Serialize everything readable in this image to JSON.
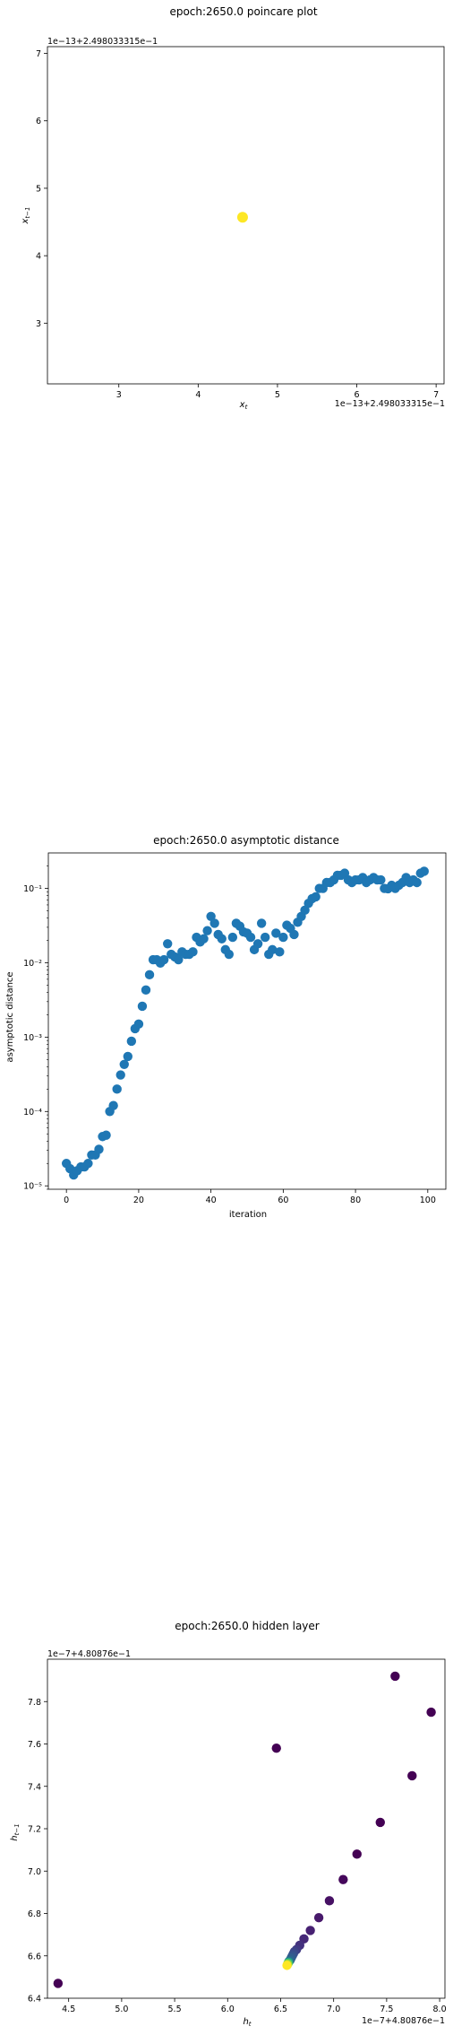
{
  "chart_data": [
    {
      "type": "scatter",
      "title": "epoch:2650.0 poincare plot",
      "xlabel": "x_t",
      "ylabel": "x_{t-1}",
      "x_offset_label": "1e−13+2.498033315e−1",
      "y_offset_label": "1e−13+2.498033315e−1",
      "xlim": [
        2.1,
        7.1
      ],
      "ylim": [
        2.1,
        7.1
      ],
      "xticks": [
        3,
        4,
        5,
        6,
        7
      ],
      "yticks": [
        3,
        4,
        5,
        6,
        7
      ],
      "x": [
        4.56
      ],
      "y": [
        4.57
      ],
      "colors": [
        "#fde725"
      ]
    },
    {
      "type": "scatter",
      "title": "epoch:2650.0 asymptotic distance",
      "xlabel": "iteration",
      "ylabel": "asymptotic distance",
      "yscale": "log",
      "xlim": [
        -5,
        105
      ],
      "ylim": [
        9e-06,
        0.3
      ],
      "xticks": [
        0,
        20,
        40,
        60,
        80,
        100
      ],
      "yticks": [
        {
          "value": 1e-05,
          "label": "10⁻⁵"
        },
        {
          "value": 0.0001,
          "label": "10⁻⁴"
        },
        {
          "value": 0.001,
          "label": "10⁻³"
        },
        {
          "value": 0.01,
          "label": "10⁻²"
        },
        {
          "value": 0.1,
          "label": "10⁻¹"
        }
      ],
      "color": "#1f77b4",
      "x": [
        0,
        1,
        2,
        3,
        4,
        5,
        6,
        7,
        8,
        9,
        10,
        11,
        12,
        13,
        14,
        15,
        16,
        17,
        18,
        19,
        20,
        21,
        22,
        23,
        24,
        25,
        26,
        27,
        28,
        29,
        30,
        31,
        32,
        33,
        34,
        35,
        36,
        37,
        38,
        39,
        40,
        41,
        42,
        43,
        44,
        45,
        46,
        47,
        48,
        49,
        50,
        51,
        52,
        53,
        54,
        55,
        56,
        57,
        58,
        59,
        60,
        61,
        62,
        63,
        64,
        65,
        66,
        67,
        68,
        69,
        70,
        71,
        72,
        73,
        74,
        75,
        76,
        77,
        78,
        79,
        80,
        81,
        82,
        83,
        84,
        85,
        86,
        87,
        88,
        89,
        90,
        91,
        92,
        93,
        94,
        95,
        96,
        97,
        98,
        99
      ],
      "y": [
        2e-05,
        1.7e-05,
        1.4e-05,
        1.6e-05,
        1.8e-05,
        1.8e-05,
        2e-05,
        2.6e-05,
        2.6e-05,
        3.1e-05,
        4.6e-05,
        4.8e-05,
        0.0001,
        0.00012,
        0.0002,
        0.00031,
        0.00043,
        0.00055,
        0.00088,
        0.0013,
        0.0015,
        0.0026,
        0.0043,
        0.0069,
        0.011,
        0.011,
        0.0099,
        0.011,
        0.018,
        0.013,
        0.012,
        0.011,
        0.014,
        0.013,
        0.013,
        0.014,
        0.022,
        0.019,
        0.021,
        0.027,
        0.042,
        0.034,
        0.024,
        0.021,
        0.015,
        0.013,
        0.022,
        0.034,
        0.031,
        0.026,
        0.025,
        0.022,
        0.015,
        0.018,
        0.034,
        0.022,
        0.013,
        0.015,
        0.025,
        0.014,
        0.022,
        0.032,
        0.029,
        0.024,
        0.035,
        0.042,
        0.051,
        0.063,
        0.073,
        0.077,
        0.1,
        0.1,
        0.12,
        0.12,
        0.13,
        0.15,
        0.15,
        0.16,
        0.13,
        0.12,
        0.13,
        0.13,
        0.14,
        0.12,
        0.13,
        0.14,
        0.13,
        0.13,
        0.1,
        0.099,
        0.11,
        0.1,
        0.11,
        0.12,
        0.14,
        0.12,
        0.13,
        0.12,
        0.16,
        0.17
      ]
    },
    {
      "type": "scatter",
      "title": "epoch:2650.0 hidden layer",
      "xlabel": "h_t",
      "ylabel": "h_{t-1}",
      "x_offset_label": "1e−7+4.80876e−1",
      "y_offset_label": "1e−7+4.80876e−1",
      "xlim": [
        4.3,
        8.05
      ],
      "ylim": [
        6.4,
        8.0
      ],
      "xticks": [
        {
          "value": 4.5,
          "label": "4.5"
        },
        {
          "value": 5.0,
          "label": "5.0"
        },
        {
          "value": 5.5,
          "label": "5.5"
        },
        {
          "value": 6.0,
          "label": "6.0"
        },
        {
          "value": 6.5,
          "label": "6.5"
        },
        {
          "value": 7.0,
          "label": "7.0"
        },
        {
          "value": 7.5,
          "label": "7.5"
        },
        {
          "value": 8.0,
          "label": "8.0"
        }
      ],
      "yticks": [
        {
          "value": 6.4,
          "label": "6.4"
        },
        {
          "value": 6.6,
          "label": "6.6"
        },
        {
          "value": 6.8,
          "label": "6.8"
        },
        {
          "value": 7.0,
          "label": "7.0"
        },
        {
          "value": 7.2,
          "label": "7.2"
        },
        {
          "value": 7.4,
          "label": "7.4"
        },
        {
          "value": 7.6,
          "label": "7.6"
        },
        {
          "value": 7.8,
          "label": "7.8"
        }
      ],
      "x": [
        4.4,
        6.46,
        7.58,
        7.92,
        7.74,
        7.44,
        7.22,
        7.09,
        6.96,
        6.86,
        6.78,
        6.72,
        6.68,
        6.65,
        6.63,
        6.62,
        6.61,
        6.6,
        6.59,
        6.58,
        6.575,
        6.57,
        6.565,
        6.56
      ],
      "y": [
        6.47,
        7.58,
        7.92,
        7.75,
        7.45,
        7.23,
        7.08,
        6.96,
        6.86,
        6.78,
        6.72,
        6.68,
        6.65,
        6.63,
        6.62,
        6.61,
        6.6,
        6.59,
        6.58,
        6.575,
        6.57,
        6.565,
        6.56,
        6.555
      ],
      "colors": [
        "#440154",
        "#440154",
        "#440154",
        "#440154",
        "#440154",
        "#440154",
        "#440154",
        "#45085b",
        "#471164",
        "#48196b",
        "#472172",
        "#462978",
        "#44317e",
        "#413a83",
        "#3e4388",
        "#3b4b8b",
        "#37538d",
        "#335b8e",
        "#2f638e",
        "#2b6b8e",
        "#1fa187",
        "#4ac16d",
        "#a0da39",
        "#fde725"
      ]
    }
  ]
}
